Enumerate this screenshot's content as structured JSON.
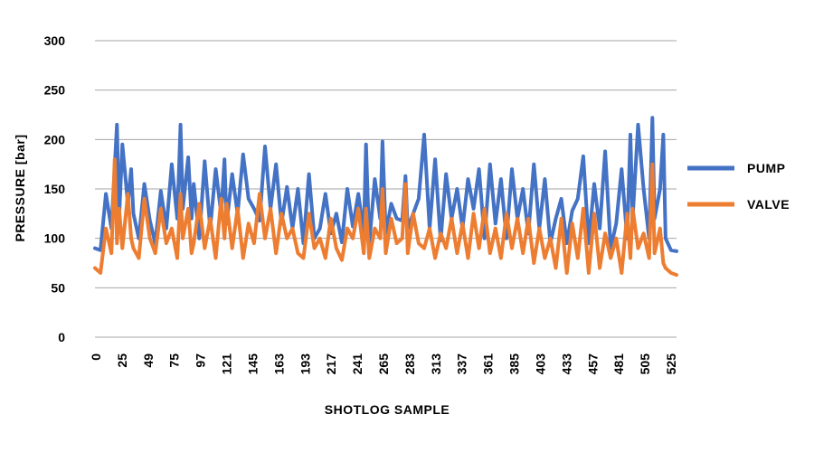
{
  "chart_data": {
    "type": "line",
    "title": "",
    "xlabel": "SHOTLOG SAMPLE",
    "ylabel": "PRESSURE [bar]",
    "ylim": [
      0,
      300
    ],
    "xlim": [
      0,
      530
    ],
    "yticks": [
      0,
      50,
      100,
      150,
      200,
      250,
      300
    ],
    "xticks": [
      "0",
      "25",
      "49",
      "75",
      "97",
      "121",
      "145",
      "163",
      "193",
      "217",
      "241",
      "265",
      "283",
      "313",
      "337",
      "361",
      "385",
      "403",
      "433",
      "457",
      "481",
      "505",
      "525"
    ],
    "grid": "horizontal",
    "legend": "right",
    "series": [
      {
        "name": "PUMP",
        "color": "#4472C4",
        "x": [
          0,
          5,
          10,
          15,
          20,
          22,
          25,
          30,
          33,
          35,
          40,
          45,
          50,
          55,
          60,
          65,
          70,
          75,
          78,
          80,
          85,
          88,
          90,
          95,
          100,
          105,
          110,
          115,
          118,
          120,
          125,
          130,
          135,
          140,
          145,
          150,
          155,
          160,
          165,
          170,
          175,
          180,
          185,
          190,
          195,
          200,
          205,
          210,
          215,
          220,
          225,
          230,
          235,
          240,
          245,
          247,
          250,
          255,
          260,
          262,
          265,
          270,
          275,
          280,
          283,
          285,
          290,
          295,
          300,
          305,
          310,
          315,
          320,
          325,
          330,
          335,
          340,
          345,
          350,
          355,
          360,
          365,
          370,
          375,
          380,
          385,
          390,
          395,
          400,
          405,
          410,
          415,
          420,
          425,
          430,
          435,
          440,
          445,
          450,
          455,
          460,
          465,
          470,
          475,
          480,
          485,
          488,
          490,
          495,
          500,
          505,
          508,
          510,
          515,
          518,
          520,
          525,
          530
        ],
        "values": [
          90,
          88,
          145,
          110,
          215,
          120,
          195,
          135,
          170,
          125,
          100,
          155,
          118,
          95,
          148,
          110,
          175,
          120,
          215,
          130,
          182,
          120,
          155,
          100,
          178,
          110,
          170,
          125,
          180,
          115,
          165,
          125,
          185,
          140,
          130,
          118,
          193,
          130,
          175,
          115,
          152,
          110,
          150,
          95,
          165,
          100,
          110,
          145,
          105,
          125,
          96,
          150,
          112,
          145,
          105,
          195,
          95,
          160,
          120,
          198,
          105,
          135,
          120,
          118,
          163,
          110,
          125,
          140,
          205,
          110,
          180,
          98,
          165,
          120,
          150,
          110,
          160,
          130,
          170,
          100,
          175,
          115,
          160,
          100,
          170,
          120,
          150,
          105,
          175,
          110,
          160,
          95,
          120,
          140,
          95,
          128,
          140,
          183,
          95,
          155,
          110,
          188,
          90,
          115,
          170,
          100,
          205,
          120,
          215,
          150,
          100,
          222,
          120,
          150,
          205,
          100,
          88,
          87
        ]
      },
      {
        "name": "VALVE",
        "color": "#ED7D31",
        "x": [
          0,
          5,
          10,
          15,
          18,
          20,
          22,
          25,
          30,
          33,
          35,
          40,
          45,
          50,
          55,
          60,
          65,
          70,
          75,
          78,
          80,
          85,
          88,
          90,
          95,
          100,
          105,
          110,
          115,
          118,
          120,
          125,
          130,
          135,
          140,
          145,
          150,
          155,
          160,
          165,
          170,
          175,
          180,
          185,
          190,
          195,
          200,
          205,
          210,
          215,
          220,
          225,
          230,
          235,
          240,
          245,
          247,
          250,
          255,
          260,
          262,
          265,
          270,
          275,
          280,
          283,
          285,
          290,
          295,
          300,
          305,
          310,
          315,
          320,
          325,
          330,
          335,
          340,
          345,
          350,
          355,
          360,
          365,
          370,
          375,
          380,
          385,
          390,
          395,
          400,
          405,
          410,
          415,
          420,
          425,
          430,
          435,
          440,
          445,
          450,
          455,
          460,
          465,
          470,
          475,
          480,
          485,
          488,
          490,
          495,
          500,
          505,
          508,
          510,
          515,
          518,
          520,
          525,
          530
        ],
        "values": [
          70,
          65,
          110,
          85,
          180,
          95,
          130,
          90,
          145,
          100,
          90,
          80,
          140,
          100,
          85,
          130,
          95,
          110,
          80,
          145,
          100,
          130,
          85,
          95,
          135,
          90,
          120,
          80,
          140,
          100,
          135,
          90,
          130,
          80,
          115,
          95,
          145,
          100,
          130,
          85,
          125,
          100,
          110,
          85,
          80,
          125,
          90,
          100,
          80,
          120,
          90,
          78,
          110,
          100,
          130,
          85,
          130,
          80,
          110,
          100,
          150,
          85,
          120,
          95,
          100,
          155,
          85,
          125,
          95,
          90,
          110,
          80,
          105,
          90,
          120,
          85,
          115,
          80,
          125,
          90,
          130,
          85,
          110,
          80,
          125,
          90,
          120,
          85,
          120,
          75,
          110,
          80,
          100,
          70,
          120,
          65,
          115,
          80,
          130,
          65,
          125,
          70,
          105,
          80,
          100,
          65,
          125,
          80,
          130,
          90,
          105,
          80,
          175,
          85,
          110,
          75,
          70,
          65,
          63
        ]
      }
    ]
  }
}
